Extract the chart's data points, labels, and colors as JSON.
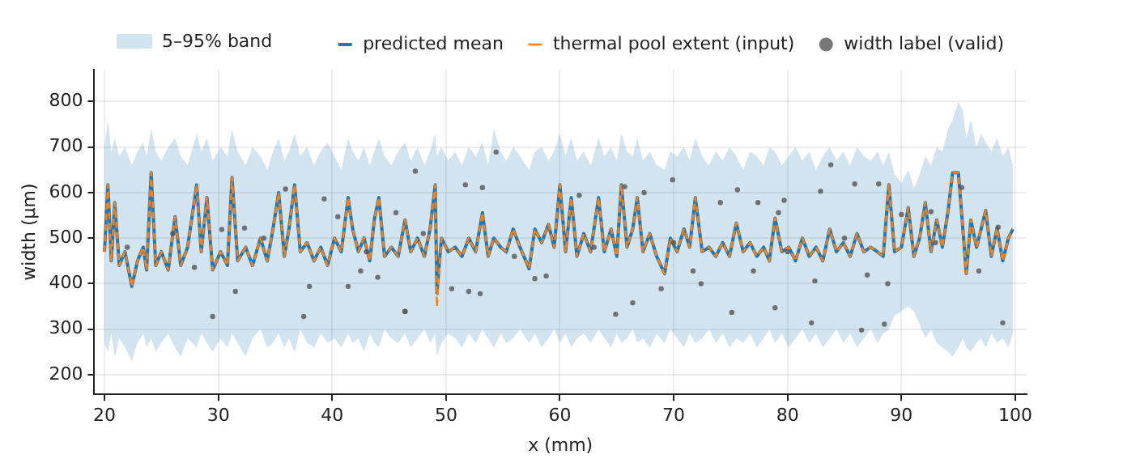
{
  "chart_data": {
    "type": "line",
    "xlabel": "x (mm)",
    "ylabel": "width (µm)",
    "xlim": [
      19.1,
      101
    ],
    "xticks": [
      20,
      30,
      40,
      50,
      60,
      70,
      80,
      90,
      100
    ],
    "ylim": [
      157,
      870
    ],
    "yticks": [
      200,
      300,
      400,
      500,
      600,
      700,
      800
    ],
    "grid": true,
    "legend": "top",
    "annotations": [
      "5–95% band"
    ],
    "series": [
      {
        "name": "predicted mean",
        "type": "line",
        "color": "#1f77b4",
        "upper": [
          700,
          760,
          690,
          720,
          680,
          700,
          660,
          690,
          710,
          680,
          740,
          690,
          670,
          700,
          720,
          680,
          660,
          730,
          690,
          720,
          670,
          700,
          680,
          740,
          690,
          660,
          700,
          680,
          650,
          690,
          720,
          670,
          690,
          730,
          680,
          700,
          660,
          690,
          710,
          680,
          650,
          720,
          690,
          670,
          700,
          660,
          690,
          720,
          680,
          660,
          690,
          710,
          670,
          700,
          660,
          690,
          730,
          680,
          700,
          670,
          690,
          660,
          700,
          680,
          710,
          660,
          740,
          690,
          670,
          700,
          680,
          650,
          690,
          700,
          670,
          690,
          730,
          680,
          720,
          670,
          690,
          660,
          720,
          680,
          700,
          670,
          730,
          690,
          680,
          720,
          670,
          690,
          660,
          650,
          690,
          680,
          700,
          670,
          720,
          680,
          660,
          690,
          670,
          700,
          680,
          650,
          690,
          680,
          660,
          700,
          690,
          660,
          680,
          700,
          670,
          690,
          650,
          680,
          700,
          670,
          690,
          660,
          700,
          680,
          670,
          690,
          660,
          690,
          640,
          620,
          650,
          610,
          640,
          680,
          660,
          700,
          690,
          740,
          760,
          800,
          780,
          720,
          760,
          700,
          730,
          710,
          690,
          720,
          680,
          700,
          660
        ],
        "lower": [
          270,
          250,
          290,
          240,
          280,
          260,
          230,
          270,
          290,
          260,
          280,
          250,
          270,
          290,
          260,
          240,
          280,
          260,
          290,
          270,
          250,
          280,
          260,
          290,
          270,
          240,
          280,
          300,
          260,
          270,
          290,
          260,
          280,
          250,
          300,
          270,
          260,
          290,
          270,
          280,
          260,
          290,
          270,
          280,
          250,
          290,
          270,
          260,
          300,
          280,
          270,
          290,
          260,
          280,
          300,
          270,
          290,
          240,
          270,
          290,
          280,
          260,
          290,
          270,
          300,
          280,
          260,
          290,
          270,
          280,
          300,
          270,
          290,
          260,
          280,
          300,
          270,
          290,
          260,
          280,
          290,
          270,
          300,
          280,
          260,
          290,
          270,
          280,
          300,
          270,
          280,
          260,
          290,
          270,
          300,
          280,
          260,
          290,
          270,
          280,
          300,
          270,
          290,
          260,
          280,
          270,
          290,
          260,
          280,
          300,
          270,
          290,
          260,
          280,
          300,
          270,
          290,
          260,
          280,
          300,
          270,
          290,
          260,
          280,
          300,
          270,
          290,
          300,
          330,
          340,
          350,
          340,
          310,
          280,
          300,
          270,
          260,
          250,
          240,
          260,
          280,
          260,
          250,
          270,
          280,
          260,
          290,
          270,
          280,
          260,
          290
        ],
        "x": [
          20,
          20.3,
          20.6,
          20.9,
          21.3,
          21.8,
          22.4,
          22.9,
          23.4,
          23.7,
          24.1,
          24.5,
          25,
          25.6,
          26.2,
          26.7,
          27.3,
          28.1,
          28.5,
          29,
          29.5,
          30.2,
          30.8,
          31.2,
          31.7,
          32.4,
          33,
          33.7,
          34.3,
          34.8,
          35.3,
          35.8,
          36.2,
          36.7,
          37.2,
          37.8,
          38.4,
          39,
          39.6,
          40.2,
          40.8,
          41.4,
          41.8,
          42.3,
          42.8,
          43.3,
          43.7,
          44.1,
          44.6,
          45.2,
          45.8,
          46.4,
          46.9,
          47.5,
          48.1,
          48.6,
          49.05,
          49.2,
          49.6,
          50.2,
          50.8,
          51.4,
          52,
          52.6,
          53.2,
          53.7,
          54.2,
          54.8,
          55.3,
          55.9,
          56.5,
          57.3,
          57.8,
          58.4,
          59,
          59.5,
          60,
          60.5,
          61,
          61.5,
          62.1,
          62.7,
          63.4,
          63.9,
          64.5,
          65,
          65.4,
          65.9,
          66.4,
          66.8,
          67.3,
          67.9,
          68.5,
          69.2,
          69.7,
          70.3,
          70.9,
          71.4,
          71.9,
          72.5,
          73.1,
          73.7,
          74.3,
          74.9,
          75.5,
          76.1,
          76.7,
          77.3,
          77.9,
          78.4,
          78.9,
          79.5,
          80.1,
          80.7,
          81.3,
          81.9,
          82.5,
          83.1,
          83.7,
          84.3,
          84.9,
          85.5,
          86.1,
          86.7,
          87.3,
          87.9,
          88.4,
          88.9,
          89.4,
          90,
          90.6,
          91.1,
          91.6,
          92.1,
          92.6,
          93.1,
          93.6,
          94.1,
          94.5,
          95,
          95.4,
          95.7,
          96.1,
          96.6,
          97,
          97.4,
          97.9,
          98.4,
          98.9,
          99.4,
          99.8
        ],
        "values": [
          470,
          617,
          450,
          578,
          440,
          470,
          394,
          450,
          480,
          430,
          644,
          440,
          470,
          430,
          547,
          440,
          480,
          617,
          470,
          589,
          430,
          470,
          440,
          633,
          450,
          480,
          440,
          500,
          450,
          520,
          600,
          460,
          520,
          617,
          470,
          490,
          450,
          480,
          440,
          500,
          470,
          589,
          520,
          470,
          500,
          450,
          540,
          589,
          460,
          480,
          460,
          540,
          470,
          500,
          460,
          520,
          617,
          380,
          500,
          470,
          480,
          460,
          500,
          470,
          556,
          460,
          500,
          480,
          470,
          520,
          480,
          433,
          520,
          490,
          530,
          480,
          617,
          470,
          589,
          460,
          510,
          470,
          589,
          470,
          520,
          460,
          617,
          480,
          520,
          589,
          470,
          510,
          460,
          422,
          500,
          470,
          520,
          480,
          589,
          470,
          480,
          460,
          490,
          460,
          533,
          470,
          490,
          460,
          480,
          450,
          544,
          470,
          480,
          450,
          500,
          460,
          480,
          450,
          520,
          470,
          490,
          460,
          510,
          470,
          480,
          470,
          460,
          617,
          470,
          480,
          567,
          460,
          500,
          578,
          470,
          540,
          480,
          560,
          644,
          644,
          520,
          422,
          540,
          480,
          520,
          561,
          460,
          522,
          450,
          500,
          520
        ]
      },
      {
        "name": "thermal pool extent (input)",
        "type": "line",
        "line_style": "dashed",
        "color": "#ff7f0e",
        "x": [
          20,
          20.3,
          20.6,
          20.9,
          21.3,
          21.8,
          22.4,
          22.9,
          23.4,
          23.7,
          24.1,
          24.5,
          25,
          25.6,
          26.2,
          26.7,
          27.3,
          28.1,
          28.5,
          29,
          29.5,
          30.2,
          30.8,
          31.2,
          31.7,
          32.4,
          33,
          33.7,
          34.3,
          34.8,
          35.3,
          35.8,
          36.2,
          36.7,
          37.2,
          37.8,
          38.4,
          39,
          39.6,
          40.2,
          40.8,
          41.4,
          41.8,
          42.3,
          42.8,
          43.3,
          43.7,
          44.1,
          44.6,
          45.2,
          45.8,
          46.4,
          46.9,
          47.5,
          48.1,
          48.6,
          49.05,
          49.2,
          49.6,
          50.2,
          50.8,
          51.4,
          52,
          52.6,
          53.2,
          53.7,
          54.2,
          54.8,
          55.3,
          55.9,
          56.5,
          57.3,
          57.8,
          58.4,
          59,
          59.5,
          60,
          60.5,
          61,
          61.5,
          62.1,
          62.7,
          63.4,
          63.9,
          64.5,
          65,
          65.4,
          65.9,
          66.4,
          66.8,
          67.3,
          67.9,
          68.5,
          69.2,
          69.7,
          70.3,
          70.9,
          71.4,
          71.9,
          72.5,
          73.1,
          73.7,
          74.3,
          74.9,
          75.5,
          76.1,
          76.7,
          77.3,
          77.9,
          78.4,
          78.9,
          79.5,
          80.1,
          80.7,
          81.3,
          81.9,
          82.5,
          83.1,
          83.7,
          84.3,
          84.9,
          85.5,
          86.1,
          86.7,
          87.3,
          87.9,
          88.4,
          88.9,
          89.4,
          90,
          90.6,
          91.1,
          91.6,
          92.1,
          92.6,
          93.1,
          93.6,
          94.1,
          94.5,
          95,
          95.4,
          95.7,
          96.1,
          96.6,
          97,
          97.4,
          97.9,
          98.4,
          98.9,
          99.4,
          99.8
        ],
        "values": [
          470,
          617,
          450,
          578,
          440,
          470,
          394,
          450,
          480,
          430,
          644,
          440,
          470,
          430,
          547,
          440,
          480,
          617,
          470,
          589,
          430,
          470,
          440,
          633,
          450,
          480,
          440,
          500,
          450,
          520,
          600,
          460,
          520,
          617,
          470,
          490,
          450,
          480,
          440,
          500,
          470,
          589,
          520,
          470,
          500,
          450,
          540,
          589,
          460,
          480,
          460,
          540,
          470,
          500,
          460,
          520,
          617,
          350,
          500,
          470,
          480,
          460,
          500,
          470,
          556,
          460,
          500,
          480,
          470,
          520,
          480,
          433,
          520,
          490,
          530,
          480,
          617,
          470,
          589,
          460,
          510,
          470,
          589,
          470,
          520,
          460,
          617,
          480,
          520,
          589,
          470,
          510,
          460,
          422,
          500,
          470,
          520,
          480,
          589,
          470,
          480,
          460,
          490,
          460,
          533,
          470,
          490,
          460,
          480,
          450,
          544,
          470,
          480,
          450,
          500,
          460,
          480,
          450,
          520,
          470,
          490,
          460,
          510,
          470,
          480,
          470,
          460,
          617,
          470,
          480,
          567,
          460,
          500,
          578,
          470,
          540,
          480,
          560,
          644,
          644,
          520,
          422,
          540,
          480,
          520,
          561,
          460,
          522,
          450,
          500,
          520
        ]
      },
      {
        "name": "width label (valid)",
        "type": "scatter",
        "marker": "circle",
        "color": "#555555",
        "x": [
          35.9,
          29.5,
          31.5,
          38,
          37.5,
          39.3,
          40.5,
          41.4,
          42.5,
          44,
          46.4,
          45.6,
          30.3,
          32.3,
          27.9,
          47.3,
          46.4,
          51.7,
          54.4,
          50.5,
          53,
          52,
          53.2,
          57.8,
          58.8,
          61.7,
          64.9,
          66.4,
          65.7,
          68.9,
          69.9,
          72.4,
          71.7,
          67.4,
          75.6,
          74.1,
          75.1,
          77.4,
          78.9,
          79.7,
          82.1,
          82.9,
          83.8,
          85.9,
          86.5,
          88.5,
          88.8,
          88,
          90,
          82.4,
          92.6,
          95.3,
          96.8,
          98.9,
          98.5,
          87,
          77,
          79.2,
          22,
          26,
          34,
          43,
          48,
          56,
          63,
          70,
          80,
          85,
          93
        ],
        "values": [
          608,
          328,
          383,
          394,
          328,
          586,
          547,
          394,
          428,
          414,
          339,
          556,
          519,
          522,
          436,
          647,
          339,
          617,
          689,
          389,
          378,
          383,
          611,
          411,
          417,
          594,
          333,
          358,
          613,
          389,
          628,
          400,
          428,
          600,
          606,
          578,
          337,
          578,
          347,
          583,
          314,
          603,
          661,
          619,
          298,
          311,
          400,
          619,
          552,
          406,
          558,
          611,
          428,
          314,
          524,
          419,
          428,
          556,
          480,
          510,
          500,
          470,
          510,
          460,
          480,
          490,
          470,
          500,
          490
        ]
      }
    ]
  }
}
